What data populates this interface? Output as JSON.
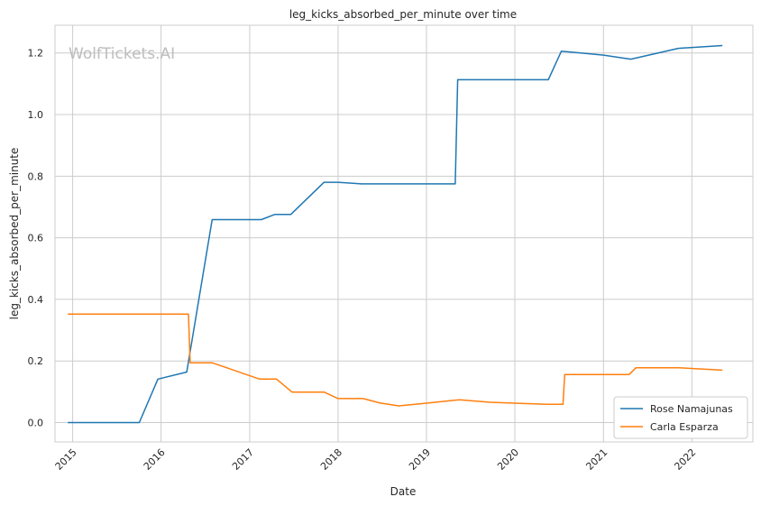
{
  "chart_data": {
    "type": "line",
    "title": "leg_kicks_absorbed_per_minute over time",
    "xlabel": "Date",
    "ylabel": "leg_kicks_absorbed_per_minute",
    "watermark": "WolfTickets.AI",
    "xlim": [
      "2014-10-20",
      "2022-09-10"
    ],
    "ylim": [
      -0.063,
      1.29
    ],
    "x_tick_labels": [
      "2015",
      "2016",
      "2017",
      "2018",
      "2019",
      "2020",
      "2021",
      "2022"
    ],
    "y_ticks": [
      0.0,
      0.2,
      0.4,
      0.6,
      0.8,
      1.0,
      1.2
    ],
    "y_tick_labels": [
      "0.0",
      "0.2",
      "0.4",
      "0.6",
      "0.8",
      "1.0",
      "1.2"
    ],
    "grid": true,
    "legend_position": "lower-right",
    "series": [
      {
        "name": "Rose Namajunas",
        "color": "#1f77b4",
        "points": [
          [
            "2014-12-12",
            0.0
          ],
          [
            "2015-10-03",
            0.0
          ],
          [
            "2015-12-19",
            0.141
          ],
          [
            "2016-04-16",
            0.164
          ],
          [
            "2016-07-30",
            0.659
          ],
          [
            "2017-02-18",
            0.659
          ],
          [
            "2017-04-15",
            0.676
          ],
          [
            "2017-06-20",
            0.676
          ],
          [
            "2017-11-04",
            0.78
          ],
          [
            "2018-01-01",
            0.78
          ],
          [
            "2018-04-07",
            0.775
          ],
          [
            "2019-01-01",
            0.775
          ],
          [
            "2019-04-30",
            0.775
          ],
          [
            "2019-05-10",
            1.113
          ],
          [
            "2020-01-01",
            1.113
          ],
          [
            "2020-05-18",
            1.113
          ],
          [
            "2020-07-11",
            1.206
          ],
          [
            "2021-01-01",
            1.193
          ],
          [
            "2021-04-24",
            1.18
          ],
          [
            "2021-11-06",
            1.215
          ],
          [
            "2022-05-07",
            1.224
          ]
        ]
      },
      {
        "name": "Carla Esparza",
        "color": "#ff7f0e",
        "points": [
          [
            "2014-12-12",
            0.352
          ],
          [
            "2015-06-01",
            0.352
          ],
          [
            "2016-04-23",
            0.352
          ],
          [
            "2016-04-30",
            0.194
          ],
          [
            "2016-07-30",
            0.194
          ],
          [
            "2017-02-11",
            0.141
          ],
          [
            "2017-04-22",
            0.141
          ],
          [
            "2017-06-25",
            0.099
          ],
          [
            "2017-11-04",
            0.099
          ],
          [
            "2018-01-01",
            0.078
          ],
          [
            "2018-04-15",
            0.078
          ],
          [
            "2018-06-20",
            0.064
          ],
          [
            "2018-09-08",
            0.054
          ],
          [
            "2019-01-01",
            0.063
          ],
          [
            "2019-05-18",
            0.074
          ],
          [
            "2019-09-21",
            0.066
          ],
          [
            "2020-01-01",
            0.063
          ],
          [
            "2020-05-13",
            0.059
          ],
          [
            "2020-07-18",
            0.059
          ],
          [
            "2020-07-25",
            0.156
          ],
          [
            "2021-01-01",
            0.156
          ],
          [
            "2021-04-17",
            0.156
          ],
          [
            "2021-05-15",
            0.178
          ],
          [
            "2021-11-06",
            0.178
          ],
          [
            "2022-05-07",
            0.17
          ]
        ]
      }
    ]
  }
}
